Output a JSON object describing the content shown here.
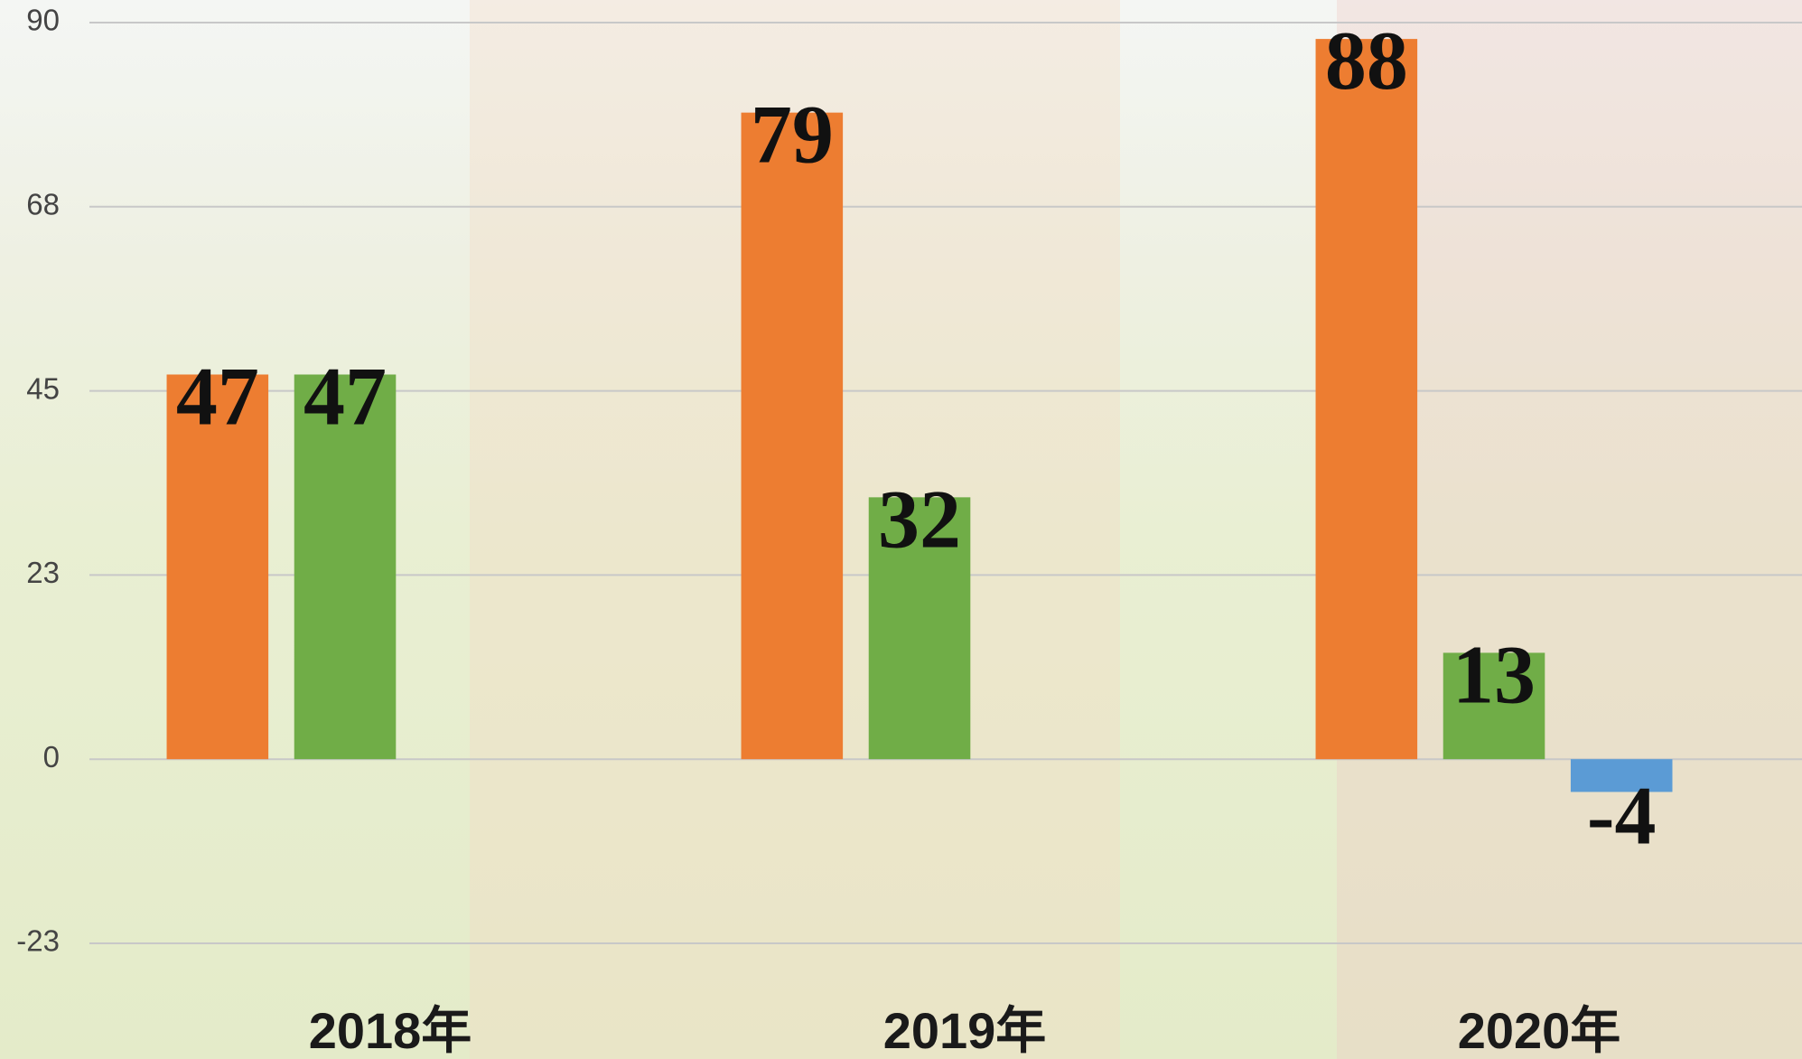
{
  "chart_data": {
    "type": "bar",
    "categories": [
      "2018年",
      "2019年",
      "2020年"
    ],
    "series": [
      {
        "color": "#ed7d31",
        "values": [
          47,
          79,
          88
        ]
      },
      {
        "color": "#70ad47",
        "values": [
          47,
          32,
          13
        ]
      },
      {
        "color": "#5b9bd5",
        "values": [
          null,
          null,
          -4
        ]
      }
    ],
    "ylim": [
      -22.5,
      90
    ],
    "yticks": [
      {
        "value": -22.5,
        "label": "-23"
      },
      0,
      {
        "value": 22.5,
        "label": "23"
      },
      45,
      {
        "value": 67.5,
        "label": "68"
      },
      90
    ],
    "grid": true
  }
}
